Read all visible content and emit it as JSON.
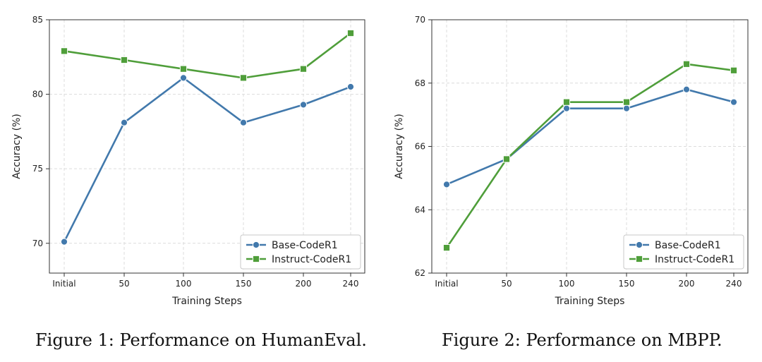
{
  "colors": {
    "blue": "#4279ac",
    "green": "#4f9e3a",
    "grid": "#dcdcdc",
    "axis": "#333333"
  },
  "captions": {
    "left": "Figure 1: Performance on HumanEval.",
    "right": "Figure 2: Performance on MBPP."
  },
  "chart_data": [
    {
      "type": "line",
      "title": "",
      "xlabel": "Training Steps",
      "ylabel": "Accuracy (%)",
      "categories": [
        "Initial",
        "50",
        "100",
        "150",
        "200",
        "240"
      ],
      "ylim": [
        68,
        85
      ],
      "yticks": [
        70,
        75,
        80,
        85
      ],
      "grid": true,
      "legend": "lower-right",
      "series": [
        {
          "name": "Base-CodeR1",
          "marker": "circle",
          "color": "#4279ac",
          "values": [
            70.1,
            78.1,
            81.1,
            78.1,
            79.3,
            80.5
          ]
        },
        {
          "name": "Instruct-CodeR1",
          "marker": "square",
          "color": "#4f9e3a",
          "values": [
            82.9,
            82.3,
            81.7,
            81.1,
            81.7,
            84.1
          ]
        }
      ]
    },
    {
      "type": "line",
      "title": "",
      "xlabel": "Training Steps",
      "ylabel": "Accuracy (%)",
      "categories": [
        "Initial",
        "50",
        "100",
        "150",
        "200",
        "240"
      ],
      "ylim": [
        62,
        70
      ],
      "yticks": [
        62,
        64,
        66,
        68,
        70
      ],
      "grid": true,
      "legend": "lower-right",
      "series": [
        {
          "name": "Base-CodeR1",
          "marker": "circle",
          "color": "#4279ac",
          "values": [
            64.8,
            65.6,
            67.2,
            67.2,
            67.8,
            67.4
          ]
        },
        {
          "name": "Instruct-CodeR1",
          "marker": "square",
          "color": "#4f9e3a",
          "values": [
            62.8,
            65.6,
            67.4,
            67.4,
            68.6,
            68.4
          ]
        }
      ]
    }
  ]
}
